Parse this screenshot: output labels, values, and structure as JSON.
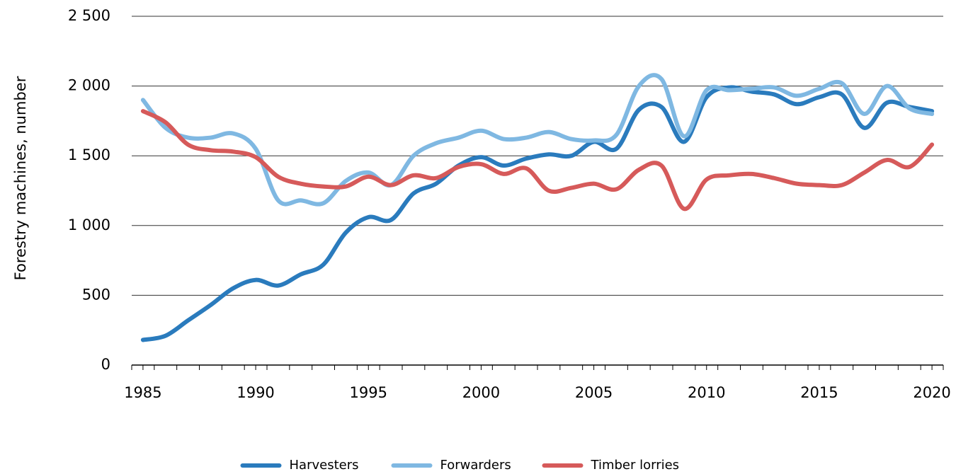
{
  "chart_data": {
    "type": "line",
    "y_label": "Forestry machines, number",
    "x": [
      1985,
      1986,
      1987,
      1988,
      1989,
      1990,
      1991,
      1992,
      1993,
      1994,
      1995,
      1996,
      1997,
      1998,
      1999,
      2000,
      2001,
      2002,
      2003,
      2004,
      2005,
      2006,
      2007,
      2008,
      2009,
      2010,
      2011,
      2012,
      2013,
      2014,
      2015,
      2016,
      2017,
      2018,
      2019,
      2020
    ],
    "xlim": [
      1984.5,
      2020.5
    ],
    "xticks": [
      1985,
      1990,
      1995,
      2000,
      2005,
      2010,
      2015,
      2020
    ],
    "ylim": [
      0,
      2500
    ],
    "yticks": [
      0,
      500,
      {
        "value": 1000,
        "label": "1 000"
      },
      {
        "value": 1500,
        "label": "1 500"
      },
      {
        "value": 2000,
        "label": "2 000"
      },
      {
        "value": 2500,
        "label": "2 500"
      }
    ],
    "grid": true,
    "legend": "bottom",
    "series": [
      {
        "name": "Harvesters",
        "color": "#2a7bbd",
        "values": [
          180,
          210,
          320,
          430,
          550,
          610,
          570,
          650,
          720,
          950,
          1060,
          1040,
          1230,
          1300,
          1430,
          1490,
          1430,
          1480,
          1510,
          1500,
          1600,
          1550,
          1830,
          1850,
          1600,
          1920,
          1990,
          1960,
          1940,
          1870,
          1920,
          1940,
          1700,
          1880,
          1850,
          1820
        ]
      },
      {
        "name": "Forwarders",
        "color": "#7fb8e2",
        "values": [
          1900,
          1700,
          1630,
          1630,
          1660,
          1550,
          1180,
          1180,
          1160,
          1320,
          1380,
          1290,
          1500,
          1590,
          1630,
          1680,
          1620,
          1630,
          1670,
          1620,
          1610,
          1650,
          2000,
          2050,
          1640,
          1970,
          1970,
          1980,
          1990,
          1930,
          1980,
          2020,
          1800,
          2000,
          1840,
          1800
        ]
      },
      {
        "name": "Timber lorries",
        "color": "#d65a5a",
        "values": [
          1820,
          1740,
          1580,
          1540,
          1530,
          1490,
          1350,
          1300,
          1280,
          1280,
          1350,
          1290,
          1360,
          1340,
          1420,
          1440,
          1370,
          1410,
          1250,
          1270,
          1300,
          1260,
          1400,
          1430,
          1120,
          1330,
          1360,
          1370,
          1340,
          1300,
          1290,
          1290,
          1380,
          1470,
          1420,
          1580
        ]
      }
    ]
  }
}
